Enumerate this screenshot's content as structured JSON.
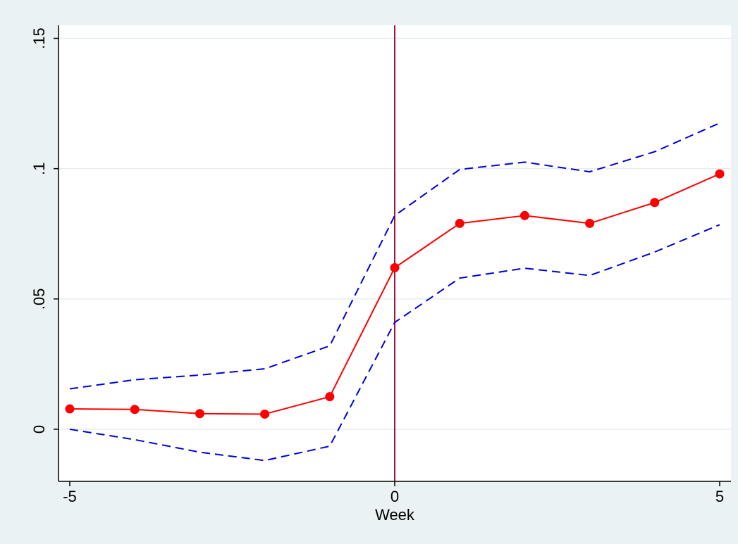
{
  "chart_data": {
    "type": "line",
    "title": "",
    "xlabel": "Week",
    "ylabel": "",
    "xlim": [
      -5,
      5
    ],
    "ylim": [
      -0.02,
      0.155
    ],
    "x_ticks": [
      {
        "value": -5,
        "label": "-5"
      },
      {
        "value": 0,
        "label": "0"
      },
      {
        "value": 5,
        "label": "5"
      }
    ],
    "y_ticks": [
      {
        "value": 0,
        "label": "0"
      },
      {
        "value": 0.05,
        "label": ".05"
      },
      {
        "value": 0.1,
        "label": ".1"
      },
      {
        "value": 0.15,
        "label": ".15"
      }
    ],
    "grid": true,
    "reference_line_x": 0,
    "x": [
      -5,
      -4,
      -3,
      -2,
      -1,
      0,
      1,
      2,
      3,
      4,
      5
    ],
    "series": [
      {
        "role": "estimate",
        "values": [
          0.0078,
          0.0076,
          0.006,
          0.0058,
          0.0125,
          0.062,
          0.079,
          0.082,
          0.079,
          0.087,
          0.098
        ],
        "color": "#ff0000",
        "line_style": "solid",
        "markers": true
      },
      {
        "role": "upper-bound",
        "values": [
          0.0155,
          0.019,
          0.0208,
          0.0232,
          0.032,
          0.082,
          0.0997,
          0.1025,
          0.0988,
          0.1065,
          0.1175
        ],
        "color": "#0000d6",
        "line_style": "dashed",
        "markers": false
      },
      {
        "role": "lower-bound",
        "values": [
          0.0,
          -0.004,
          -0.0088,
          -0.012,
          -0.0065,
          0.041,
          0.058,
          0.0618,
          0.059,
          0.068,
          0.0785
        ],
        "color": "#0000d6",
        "line_style": "dashed",
        "markers": false
      }
    ],
    "colors": {
      "outer_background": "#eaf2f3",
      "plot_background": "#ffffff",
      "grid": "#e6ecee",
      "reference_line": "#a3143c",
      "axis": "#000000"
    }
  }
}
